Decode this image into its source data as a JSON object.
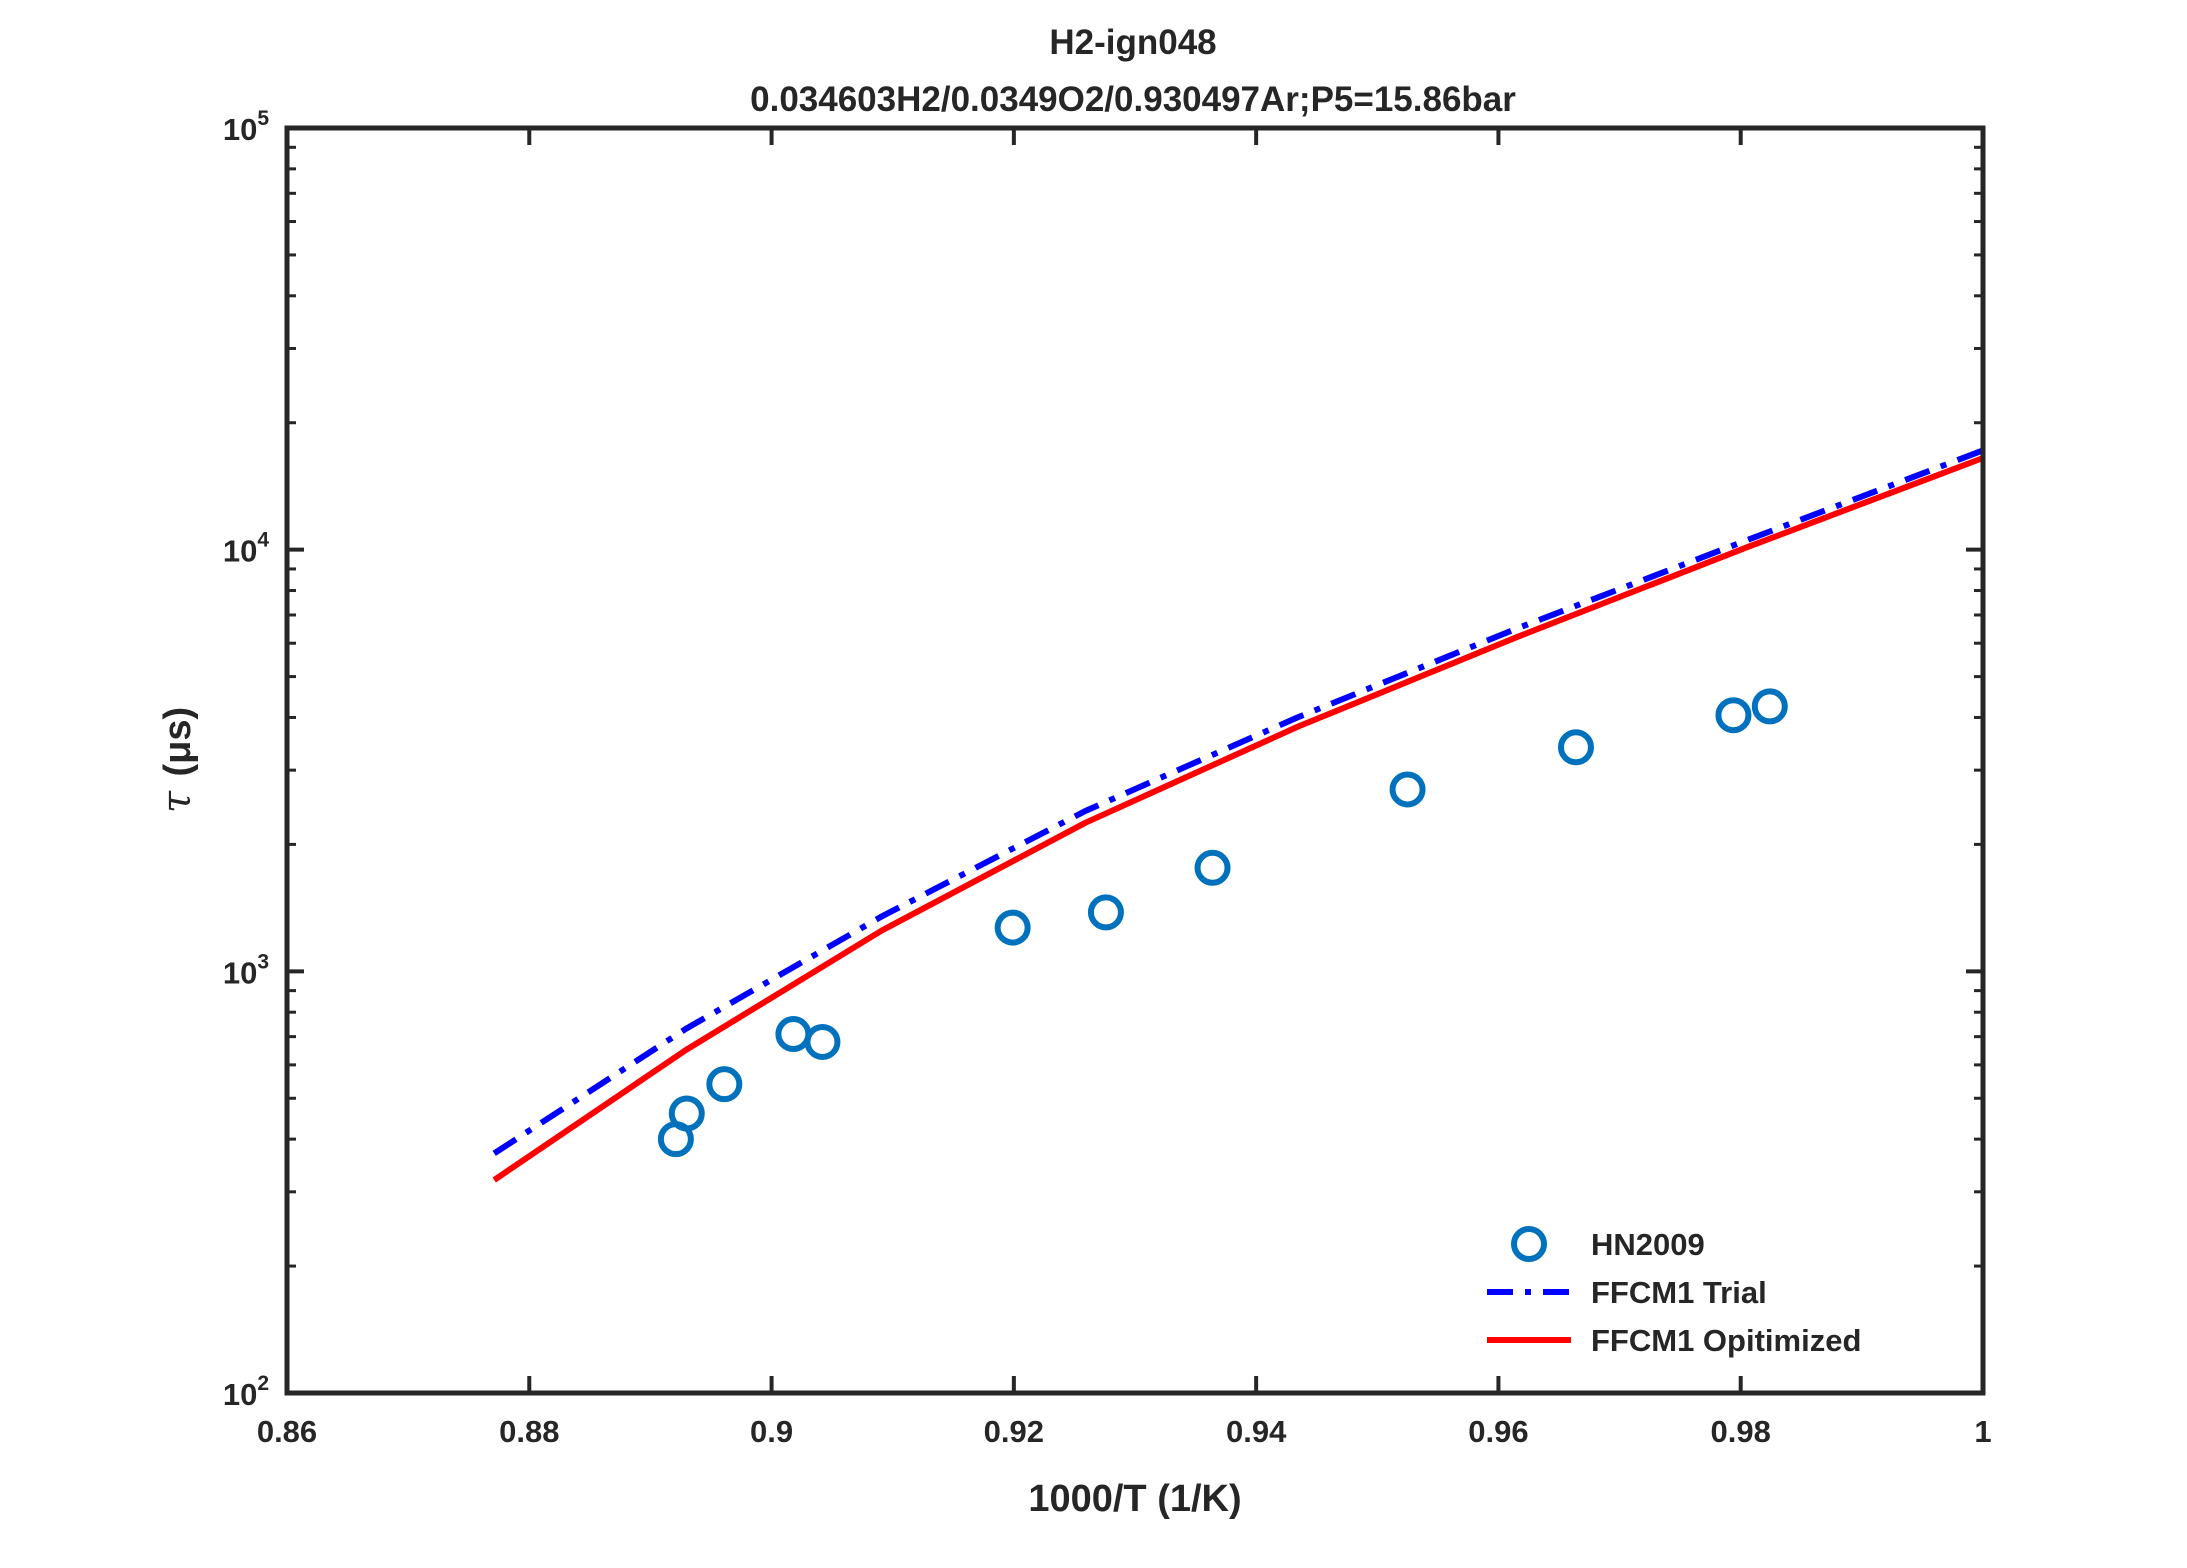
{
  "chart_data": {
    "type": "line",
    "title": "H2-ign048",
    "subtitle": "0.034603H2/0.0349O2/0.930497Ar;P5=15.86bar",
    "xlabel": "1000/T (1/K)",
    "ylabel_symbol": "τ",
    "ylabel_unit": "(μs)",
    "xlim": [
      0.86,
      1.0
    ],
    "ylim": [
      100,
      100000
    ],
    "y_scale": "log",
    "x_ticks": [
      0.86,
      0.88,
      0.9,
      0.92,
      0.94,
      0.96,
      0.98,
      1.0
    ],
    "x_tick_labels": [
      "0.86",
      "0.88",
      "0.9",
      "0.92",
      "0.94",
      "0.96",
      "0.98",
      "1"
    ],
    "y_ticks": [
      {
        "value": 100,
        "base": "10",
        "exp": "2"
      },
      {
        "value": 1000,
        "base": "10",
        "exp": "3"
      },
      {
        "value": 10000,
        "base": "10",
        "exp": "4"
      },
      {
        "value": 100000,
        "base": "10",
        "exp": "5"
      }
    ],
    "grid": false,
    "legend_position": "bottom-right",
    "series": [
      {
        "name": "HN2009",
        "style": "markers",
        "marker": "circle",
        "color": "#0072BD",
        "x": [
          0.8921,
          0.893,
          0.8961,
          0.9018,
          0.9042,
          0.9199,
          0.9276,
          0.9364,
          0.9525,
          0.9664,
          0.9794,
          0.9824
        ],
        "y": [
          400,
          460,
          540,
          710,
          680,
          1270,
          1380,
          1760,
          2700,
          3400,
          4050,
          4250
        ]
      },
      {
        "name": "FFCM1 Trial",
        "style": "dashdot",
        "color": "#0000FF",
        "x": [
          0.8771,
          0.8929,
          0.9091,
          0.9259,
          0.9434,
          0.9615,
          0.9804,
          1.0
        ],
        "y": [
          370,
          730,
          1350,
          2400,
          4000,
          6500,
          10500,
          17200
        ]
      },
      {
        "name": "FFCM1 Opitimized",
        "style": "solid",
        "color": "#FF0000",
        "x": [
          0.8771,
          0.8929,
          0.9091,
          0.9259,
          0.9434,
          0.9615,
          0.9804,
          1.0
        ],
        "y": [
          320,
          650,
          1250,
          2250,
          3800,
          6200,
          10100,
          16500
        ]
      }
    ]
  }
}
